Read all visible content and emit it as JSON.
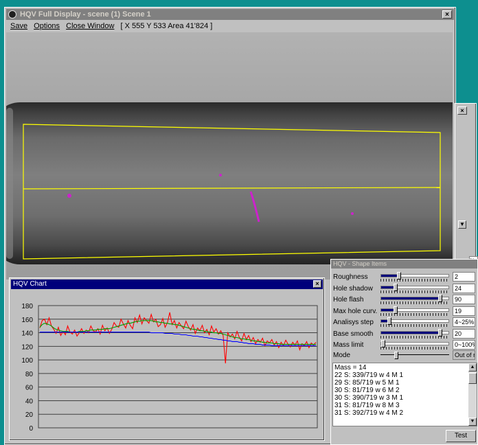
{
  "main_window": {
    "title": "HQV Full Display - scene (1) Scene 1",
    "close_glyph": "×",
    "menu": {
      "save": "Save",
      "options": "Options",
      "close_window": "Close Window",
      "status": "[ X 555  Y 533   Area 41'824 ]"
    }
  },
  "side_window": {
    "close_glyph": "×",
    "down_glyph": "▼"
  },
  "chart_window": {
    "title": "HQV Chart",
    "close_glyph": "×"
  },
  "chart_data": {
    "type": "line",
    "yticks": [
      "180",
      "160",
      "140",
      "120",
      "100",
      "80",
      "60",
      "40",
      "20",
      "0"
    ],
    "ylim": [
      0,
      180
    ],
    "x_count": 120,
    "series": [
      {
        "color": "#ff0000",
        "values": [
          147,
          158,
          160,
          152,
          162,
          150,
          145,
          139,
          148,
          136,
          142,
          137,
          150,
          141,
          138,
          144,
          135,
          140,
          146,
          139,
          144,
          140,
          150,
          143,
          141,
          146,
          138,
          151,
          143,
          147,
          139,
          145,
          155,
          150,
          148,
          160,
          153,
          147,
          158,
          151,
          146,
          162,
          155,
          166,
          153,
          162,
          158,
          154,
          167,
          156,
          160,
          149,
          152,
          161,
          148,
          155,
          170,
          152,
          158,
          147,
          155,
          150,
          146,
          157,
          149,
          144,
          152,
          139,
          147,
          143,
          151,
          140,
          145,
          137,
          150,
          141,
          146,
          138,
          143,
          136,
          95,
          140,
          134,
          138,
          131,
          142,
          133,
          128,
          139,
          130,
          136,
          127,
          133,
          124,
          130,
          126,
          132,
          121,
          128,
          125,
          130,
          122,
          127,
          118,
          126,
          121,
          129,
          123,
          119,
          126,
          122,
          128,
          115,
          124,
          121,
          127,
          118,
          125,
          122,
          126
        ]
      },
      {
        "color": "#00a000",
        "values": [
          148,
          152,
          154,
          153,
          152,
          150,
          147,
          145,
          144,
          143,
          142,
          142,
          142,
          141,
          141,
          141,
          141,
          142,
          142,
          142,
          143,
          143,
          144,
          144,
          144,
          145,
          145,
          145,
          146,
          146,
          146,
          147,
          148,
          149,
          150,
          151,
          152,
          153,
          154,
          154,
          155,
          156,
          157,
          157,
          158,
          158,
          158,
          158,
          158,
          157,
          156,
          156,
          155,
          155,
          154,
          154,
          153,
          153,
          152,
          152,
          151,
          150,
          149,
          148,
          147,
          146,
          145,
          145,
          144,
          143,
          143,
          142,
          142,
          141,
          141,
          140,
          140,
          139,
          139,
          138,
          137,
          136,
          135,
          134,
          133,
          133,
          132,
          131,
          131,
          130,
          130,
          129,
          128,
          128,
          127,
          127,
          126,
          126,
          125,
          125,
          125,
          124,
          124,
          124,
          123,
          123,
          123,
          123,
          123,
          123,
          123,
          123,
          123,
          123,
          123,
          123,
          123,
          123,
          123,
          123
        ]
      },
      {
        "color": "#0000ff",
        "values": [
          141,
          141,
          141,
          141,
          141,
          141,
          141,
          141,
          141,
          141,
          141,
          141,
          141,
          141,
          141,
          141,
          141,
          141,
          141,
          141,
          141,
          141,
          141,
          141,
          141,
          141,
          141,
          141,
          141,
          141,
          141,
          141,
          141,
          141,
          141,
          141,
          141,
          141,
          141,
          141,
          141,
          141,
          141,
          141,
          141,
          141,
          141,
          141,
          140,
          140,
          140,
          140,
          140,
          140,
          139,
          139,
          139,
          139,
          138,
          138,
          138,
          137,
          137,
          137,
          136,
          136,
          135,
          135,
          135,
          134,
          134,
          133,
          133,
          132,
          132,
          131,
          131,
          130,
          130,
          129,
          129,
          128,
          128,
          127,
          127,
          127,
          126,
          126,
          125,
          125,
          124,
          124,
          124,
          123,
          123,
          123,
          122,
          122,
          122,
          122,
          121,
          121,
          121,
          121,
          121,
          121,
          121,
          121,
          121,
          121,
          121,
          121,
          121,
          121,
          121,
          121,
          121,
          121,
          121,
          121
        ]
      }
    ]
  },
  "shape_window": {
    "title": "HQV - Shape Items",
    "params": [
      {
        "label": "Roughness",
        "value": "2",
        "level": 0.25
      },
      {
        "label": "Hole shadow",
        "value": "24",
        "level": 0.2
      },
      {
        "label": "Hole flash",
        "value": "90",
        "level": 0.9
      },
      {
        "label": "Max hole curv.",
        "value": "19",
        "level": 0.2
      },
      {
        "label": "Analisys step",
        "value": "4~25%",
        "level": 0.1
      },
      {
        "label": "Base smooth",
        "value": "20",
        "level": 0.9
      },
      {
        "label": "Mass limit",
        "value": "0~100%",
        "level": 0.0
      }
    ],
    "mode_label": "Mode",
    "mode_value": "Out of range",
    "log": [
      "Mass = 14",
      "22 S: 339/719  w 4  M 1",
      "29 S: 85/719  w 5  M 1",
      "30 S: 81/719  w 6  M 2",
      "30 S: 390/719  w 3  M 1",
      "31 S: 81/719  w 8  M 3",
      "31 S: 392/719  w 4  M 2"
    ],
    "test_label": "Test",
    "pct": "%",
    "scroll_up": "▲",
    "scroll_down": "▼"
  }
}
